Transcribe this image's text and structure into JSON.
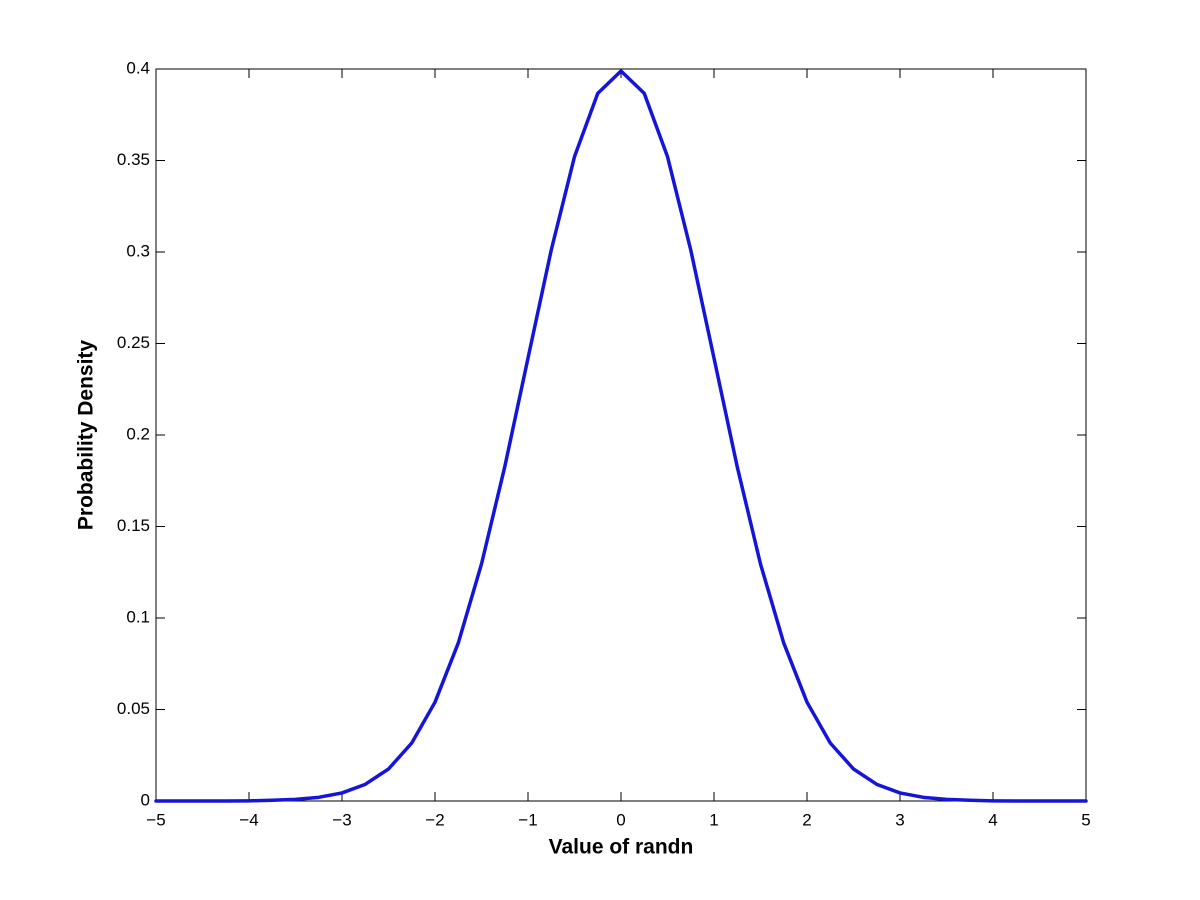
{
  "chart_data": {
    "type": "line",
    "xlabel": "Value of randn",
    "ylabel": "Probability Density",
    "x": [
      -5,
      -4.75,
      -4.5,
      -4.25,
      -4,
      -3.75,
      -3.5,
      -3.25,
      -3,
      -2.75,
      -2.5,
      -2.25,
      -2,
      -1.75,
      -1.5,
      -1.25,
      -1,
      -0.75,
      -0.5,
      -0.25,
      0,
      0.25,
      0.5,
      0.75,
      1,
      1.25,
      1.5,
      1.75,
      2,
      2.25,
      2.5,
      2.75,
      3,
      3.25,
      3.5,
      3.75,
      4,
      4.25,
      4.5,
      4.75,
      5
    ],
    "values": [
      0,
      0,
      0,
      0,
      0.0001,
      0.0004,
      0.0009,
      0.002,
      0.0044,
      0.0091,
      0.0175,
      0.0317,
      0.054,
      0.0863,
      0.1295,
      0.1826,
      0.242,
      0.3011,
      0.3521,
      0.3867,
      0.3989,
      0.3867,
      0.3521,
      0.3011,
      0.242,
      0.1826,
      0.1295,
      0.0863,
      0.054,
      0.0317,
      0.0175,
      0.0091,
      0.0044,
      0.002,
      0.0009,
      0.0004,
      0.0001,
      0,
      0,
      0,
      0
    ],
    "color": "#1515d8",
    "xlim": [
      -5,
      5
    ],
    "ylim": [
      0,
      0.4
    ],
    "xticks": [
      {
        "value": -5,
        "label": "−5"
      },
      {
        "value": -4,
        "label": "−4"
      },
      {
        "value": -3,
        "label": "−3"
      },
      {
        "value": -2,
        "label": "−2"
      },
      {
        "value": -1,
        "label": "−1"
      },
      0,
      1,
      2,
      3,
      4,
      5
    ],
    "yticks": [
      0,
      0.05,
      0.1,
      0.15,
      0.2,
      0.25,
      0.3,
      0.35,
      0.4
    ],
    "grid": false
  }
}
